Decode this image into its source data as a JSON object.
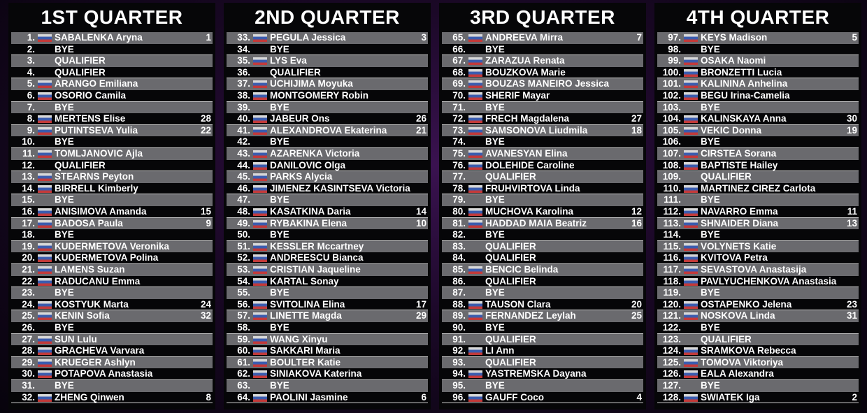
{
  "quarters": [
    {
      "title": "1ST QUARTER",
      "rows": [
        [
          "1.",
          "SABALENKA Aryna",
          "1"
        ],
        [
          "2.",
          "BYE"
        ],
        [
          "3.",
          "QUALIFIER"
        ],
        [
          "4.",
          "QUALIFIER"
        ],
        [
          "5.",
          "ARANGO Emiliana"
        ],
        [
          "6.",
          "OSORIO Camila"
        ],
        [
          "7.",
          "BYE"
        ],
        [
          "8.",
          "MERTENS Elise",
          "28"
        ],
        [
          "9.",
          "PUTINTSEVA Yulia",
          "22"
        ],
        [
          "10.",
          "BYE"
        ],
        [
          "11.",
          "TOMLJANOVIC Ajla"
        ],
        [
          "12.",
          "QUALIFIER"
        ],
        [
          "13.",
          "STEARNS Peyton"
        ],
        [
          "14.",
          "BIRRELL Kimberly"
        ],
        [
          "15.",
          "BYE"
        ],
        [
          "16.",
          "ANISIMOVA Amanda",
          "15"
        ],
        [
          "17.",
          "BADOSA Paula",
          "9"
        ],
        [
          "18.",
          "BYE"
        ],
        [
          "19.",
          "KUDERMETOVA Veronika"
        ],
        [
          "20.",
          "KUDERMETOVA Polina"
        ],
        [
          "21.",
          "LAMENS Suzan"
        ],
        [
          "22.",
          "RADUCANU Emma"
        ],
        [
          "23.",
          "BYE"
        ],
        [
          "24.",
          "KOSTYUK Marta",
          "24"
        ],
        [
          "25.",
          "KENIN Sofia",
          "32"
        ],
        [
          "26.",
          "BYE"
        ],
        [
          "27.",
          "SUN Lulu"
        ],
        [
          "28.",
          "GRACHEVA Varvara"
        ],
        [
          "29.",
          "KRUEGER Ashlyn"
        ],
        [
          "30.",
          "POTAPOVA Anastasia"
        ],
        [
          "31.",
          "BYE"
        ],
        [
          "32.",
          "ZHENG Qinwen",
          "8"
        ]
      ]
    },
    {
      "title": "2ND QUARTER",
      "rows": [
        [
          "33.",
          "PEGULA Jessica",
          "3"
        ],
        [
          "34.",
          "BYE"
        ],
        [
          "35.",
          "LYS Eva"
        ],
        [
          "36.",
          "QUALIFIER"
        ],
        [
          "37.",
          "UCHIJIMA Moyuka"
        ],
        [
          "38.",
          "MONTGOMERY Robin"
        ],
        [
          "39.",
          "BYE"
        ],
        [
          "40.",
          "JABEUR Ons",
          "26"
        ],
        [
          "41.",
          "ALEXANDROVA Ekaterina",
          "21"
        ],
        [
          "42.",
          "BYE"
        ],
        [
          "43.",
          "AZARENKA Victoria"
        ],
        [
          "44.",
          "DANILOVIC Olga"
        ],
        [
          "45.",
          "PARKS Alycia"
        ],
        [
          "46.",
          "JIMENEZ KASINTSEVA Victoria"
        ],
        [
          "47.",
          "BYE"
        ],
        [
          "48.",
          "KASATKINA Daria",
          "14"
        ],
        [
          "49.",
          "RYBAKINA Elena",
          "10"
        ],
        [
          "50.",
          "BYE"
        ],
        [
          "51.",
          "KESSLER Mccartney"
        ],
        [
          "52.",
          "ANDREESCU Bianca"
        ],
        [
          "53.",
          "CRISTIAN Jaqueline"
        ],
        [
          "54.",
          "KARTAL Sonay"
        ],
        [
          "55.",
          "BYE"
        ],
        [
          "56.",
          "SVITOLINA Elina",
          "17"
        ],
        [
          "57.",
          "LINETTE Magda",
          "29"
        ],
        [
          "58.",
          "BYE"
        ],
        [
          "59.",
          "WANG Xinyu"
        ],
        [
          "60.",
          "SAKKARI Maria"
        ],
        [
          "61.",
          "BOULTER Katie"
        ],
        [
          "62.",
          "SINIAKOVA Katerina"
        ],
        [
          "63.",
          "BYE"
        ],
        [
          "64.",
          "PAOLINI Jasmine",
          "6"
        ]
      ]
    },
    {
      "title": "3RD QUARTER",
      "rows": [
        [
          "65.",
          "ANDREEVA Mirra",
          "7"
        ],
        [
          "66.",
          "BYE"
        ],
        [
          "67.",
          "ZARAZUA Renata"
        ],
        [
          "68.",
          "BOUZKOVA Marie"
        ],
        [
          "69.",
          "BOUZAS MANEIRO Jessica"
        ],
        [
          "70.",
          "SHERIF Mayar"
        ],
        [
          "71.",
          "BYE"
        ],
        [
          "72.",
          "FRECH Magdalena",
          "27"
        ],
        [
          "73.",
          "SAMSONOVA Liudmila",
          "18"
        ],
        [
          "74.",
          "BYE"
        ],
        [
          "75.",
          "AVANESYAN Elina"
        ],
        [
          "76.",
          "DOLEHIDE Caroline"
        ],
        [
          "77.",
          "QUALIFIER"
        ],
        [
          "78.",
          "FRUHVIRTOVA Linda"
        ],
        [
          "79.",
          "BYE"
        ],
        [
          "80.",
          "MUCHOVA Karolina",
          "12"
        ],
        [
          "81.",
          "HADDAD MAIA Beatriz",
          "16"
        ],
        [
          "82.",
          "BYE"
        ],
        [
          "83.",
          "QUALIFIER"
        ],
        [
          "84.",
          "QUALIFIER"
        ],
        [
          "85.",
          "BENCIC Belinda"
        ],
        [
          "86.",
          "QUALIFIER"
        ],
        [
          "87.",
          "BYE"
        ],
        [
          "88.",
          "TAUSON Clara",
          "20"
        ],
        [
          "89.",
          "FERNANDEZ Leylah",
          "25"
        ],
        [
          "90.",
          "BYE"
        ],
        [
          "91.",
          "QUALIFIER"
        ],
        [
          "92.",
          "LI Ann"
        ],
        [
          "93.",
          "QUALIFIER"
        ],
        [
          "94.",
          "YASTREMSKA Dayana"
        ],
        [
          "95.",
          "BYE"
        ],
        [
          "96.",
          "GAUFF Coco",
          "4"
        ]
      ]
    },
    {
      "title": "4TH QUARTER",
      "rows": [
        [
          "97.",
          "KEYS Madison",
          "5"
        ],
        [
          "98.",
          "BYE"
        ],
        [
          "99.",
          "OSAKA Naomi"
        ],
        [
          "100.",
          "BRONZETTI Lucia"
        ],
        [
          "101.",
          "KALININA Anhelina"
        ],
        [
          "102.",
          "BEGU Irina-Camelia"
        ],
        [
          "103.",
          "BYE"
        ],
        [
          "104.",
          "KALINSKAYA Anna",
          "30"
        ],
        [
          "105.",
          "VEKIC Donna",
          "19"
        ],
        [
          "106.",
          "BYE"
        ],
        [
          "107.",
          "CIRSTEA Sorana"
        ],
        [
          "108.",
          "BAPTISTE Hailey"
        ],
        [
          "109.",
          "QUALIFIER"
        ],
        [
          "110.",
          "MARTINEZ CIREZ Carlota"
        ],
        [
          "111.",
          "BYE"
        ],
        [
          "112.",
          "NAVARRO Emma",
          "11"
        ],
        [
          "113.",
          "SHNAIDER Diana",
          "13"
        ],
        [
          "114.",
          "BYE"
        ],
        [
          "115.",
          "VOLYNETS Katie"
        ],
        [
          "116.",
          "KVITOVA Petra"
        ],
        [
          "117.",
          "SEVASTOVA Anastasija"
        ],
        [
          "118.",
          "PAVLYUCHENKOVA Anastasia"
        ],
        [
          "119.",
          "BYE"
        ],
        [
          "120.",
          "OSTAPENKO Jelena",
          "23"
        ],
        [
          "121.",
          "NOSKOVA Linda",
          "31"
        ],
        [
          "122.",
          "BYE"
        ],
        [
          "123.",
          "QUALIFIER"
        ],
        [
          "124.",
          "SRAMKOVA Rebecca"
        ],
        [
          "125.",
          "TOMOVA Viktoriya"
        ],
        [
          "126.",
          "EALA Alexandra"
        ],
        [
          "127.",
          "BYE"
        ],
        [
          "128.",
          "SWIATEK Iga",
          "2"
        ]
      ]
    }
  ]
}
